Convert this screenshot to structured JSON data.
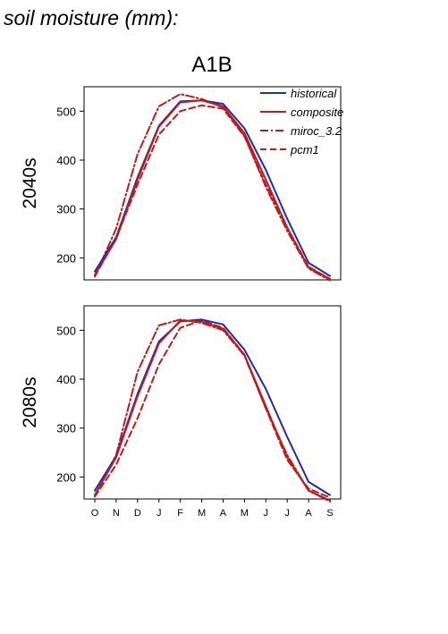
{
  "page_title": "soil moisture (mm):",
  "scenario_title": "A1B",
  "row_labels": [
    "2040s",
    "2080s"
  ],
  "colors": {
    "historical": "#1b2db3",
    "future": "#c01a1a"
  },
  "legend": {
    "position": "top-right",
    "items": [
      {
        "name": "historical",
        "color": "#1b2db3",
        "dash": "solid"
      },
      {
        "name": "composite",
        "color": "#c01a1a",
        "dash": "solid"
      },
      {
        "name": "miroc_3.2",
        "color": "#c01a1a",
        "dash": "dashdot"
      },
      {
        "name": "pcm1",
        "color": "#c01a1a",
        "dash": "dashed"
      }
    ]
  },
  "chart_data": [
    {
      "type": "line",
      "panel": "2040s",
      "categories": [
        "O",
        "N",
        "D",
        "J",
        "F",
        "M",
        "A",
        "M",
        "J",
        "J",
        "A",
        "S"
      ],
      "ylim": [
        155,
        550
      ],
      "yticks": [
        200,
        300,
        400,
        500
      ],
      "grid": false,
      "series": [
        {
          "name": "historical",
          "values": [
            172,
            242,
            365,
            470,
            520,
            522,
            515,
            465,
            380,
            280,
            190,
            163
          ]
        },
        {
          "name": "composite",
          "values": [
            165,
            238,
            360,
            468,
            518,
            522,
            510,
            455,
            360,
            262,
            180,
            157
          ]
        },
        {
          "name": "miroc_3.2",
          "values": [
            162,
            260,
            412,
            510,
            535,
            525,
            508,
            450,
            345,
            255,
            178,
            154
          ]
        },
        {
          "name": "pcm1",
          "values": [
            162,
            240,
            350,
            452,
            500,
            512,
            505,
            448,
            350,
            262,
            182,
            157
          ]
        }
      ]
    },
    {
      "type": "line",
      "panel": "2080s",
      "categories": [
        "O",
        "N",
        "D",
        "J",
        "F",
        "M",
        "A",
        "M",
        "J",
        "J",
        "A",
        "S"
      ],
      "ylim": [
        155,
        550
      ],
      "yticks": [
        200,
        300,
        400,
        500
      ],
      "grid": false,
      "series": [
        {
          "name": "historical",
          "values": [
            172,
            243,
            370,
            477,
            518,
            522,
            512,
            460,
            380,
            282,
            190,
            163
          ]
        },
        {
          "name": "composite",
          "values": [
            163,
            240,
            365,
            473,
            520,
            518,
            503,
            450,
            345,
            240,
            172,
            152
          ]
        },
        {
          "name": "miroc_3.2",
          "values": [
            162,
            245,
            415,
            510,
            522,
            515,
            500,
            448,
            340,
            245,
            172,
            150
          ]
        },
        {
          "name": "pcm1",
          "values": [
            160,
            225,
            320,
            430,
            505,
            520,
            505,
            450,
            340,
            235,
            176,
            158
          ]
        }
      ]
    }
  ]
}
